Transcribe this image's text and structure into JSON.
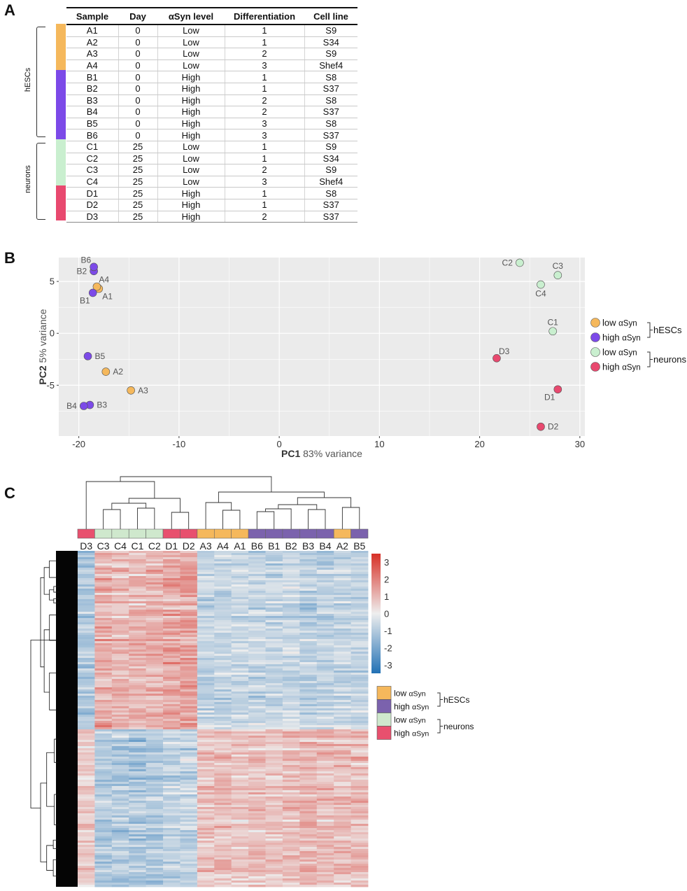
{
  "panel_labels": {
    "a": "A",
    "b": "B",
    "c": "C"
  },
  "colors": {
    "low_hescs": "#f5b85c",
    "high_hescs": "#7c4ae8",
    "low_neurons": "#c9efcf",
    "high_neurons": "#e8496f",
    "heat_low_hescs": "#f5b85c",
    "heat_high_hescs": "#7b62ad",
    "heat_low_neurons": "#cfe8cd",
    "heat_high_neurons": "#e8506e"
  },
  "table": {
    "headers": [
      "Sample",
      "Day",
      "αSyn level",
      "Differentiation",
      "Cell line"
    ],
    "group_labels": {
      "hescs": "hESCs",
      "neurons": "neurons"
    },
    "rows": [
      {
        "sample": "A1",
        "day": "0",
        "level": "Low",
        "diff": "1",
        "line": "S9",
        "group": "low_hescs"
      },
      {
        "sample": "A2",
        "day": "0",
        "level": "Low",
        "diff": "1",
        "line": "S34",
        "group": "low_hescs"
      },
      {
        "sample": "A3",
        "day": "0",
        "level": "Low",
        "diff": "2",
        "line": "S9",
        "group": "low_hescs"
      },
      {
        "sample": "A4",
        "day": "0",
        "level": "Low",
        "diff": "3",
        "line": "Shef4",
        "group": "low_hescs"
      },
      {
        "sample": "B1",
        "day": "0",
        "level": "High",
        "diff": "1",
        "line": "S8",
        "group": "high_hescs"
      },
      {
        "sample": "B2",
        "day": "0",
        "level": "High",
        "diff": "1",
        "line": "S37",
        "group": "high_hescs"
      },
      {
        "sample": "B3",
        "day": "0",
        "level": "High",
        "diff": "2",
        "line": "S8",
        "group": "high_hescs"
      },
      {
        "sample": "B4",
        "day": "0",
        "level": "High",
        "diff": "2",
        "line": "S37",
        "group": "high_hescs"
      },
      {
        "sample": "B5",
        "day": "0",
        "level": "High",
        "diff": "3",
        "line": "S8",
        "group": "high_hescs"
      },
      {
        "sample": "B6",
        "day": "0",
        "level": "High",
        "diff": "3",
        "line": "S37",
        "group": "high_hescs"
      },
      {
        "sample": "C1",
        "day": "25",
        "level": "Low",
        "diff": "1",
        "line": "S9",
        "group": "low_neurons"
      },
      {
        "sample": "C2",
        "day": "25",
        "level": "Low",
        "diff": "1",
        "line": "S34",
        "group": "low_neurons"
      },
      {
        "sample": "C3",
        "day": "25",
        "level": "Low",
        "diff": "2",
        "line": "S9",
        "group": "low_neurons"
      },
      {
        "sample": "C4",
        "day": "25",
        "level": "Low",
        "diff": "3",
        "line": "Shef4",
        "group": "low_neurons"
      },
      {
        "sample": "D1",
        "day": "25",
        "level": "High",
        "diff": "1",
        "line": "S8",
        "group": "high_neurons"
      },
      {
        "sample": "D2",
        "day": "25",
        "level": "High",
        "diff": "1",
        "line": "S37",
        "group": "high_neurons"
      },
      {
        "sample": "D3",
        "day": "25",
        "level": "High",
        "diff": "2",
        "line": "S37",
        "group": "high_neurons"
      }
    ]
  },
  "legend": {
    "low": "low",
    "high": "high",
    "syn": "αSyn",
    "hescs": "hESCs",
    "neurons": "neurons"
  },
  "chart_data": [
    {
      "type": "scatter",
      "xlabel_bold": "PC1",
      "xlabel": "83% variance",
      "ylabel_bold": "PC2",
      "ylabel": "5% variance",
      "xlim": [
        -22,
        30.5
      ],
      "ylim": [
        -9.9,
        7.3
      ],
      "xticks": [
        -20,
        -10,
        0,
        10,
        20,
        30
      ],
      "yticks": [
        -5,
        0,
        5
      ],
      "points": [
        {
          "label": "A1",
          "x": -18.0,
          "y": 4.3,
          "group": "low_hescs",
          "pos": "below-right"
        },
        {
          "label": "A2",
          "x": -17.3,
          "y": -3.7,
          "group": "low_hescs",
          "pos": "right"
        },
        {
          "label": "A3",
          "x": -14.8,
          "y": -5.5,
          "group": "low_hescs",
          "pos": "right"
        },
        {
          "label": "A4",
          "x": -18.2,
          "y": 4.5,
          "group": "low_hescs",
          "pos": "above-right"
        },
        {
          "label": "B1",
          "x": -18.6,
          "y": 3.9,
          "group": "high_hescs",
          "pos": "below-left"
        },
        {
          "label": "B2",
          "x": -18.5,
          "y": 6.0,
          "group": "high_hescs",
          "pos": "left"
        },
        {
          "label": "B3",
          "x": -18.9,
          "y": -6.9,
          "group": "high_hescs",
          "pos": "right"
        },
        {
          "label": "B4",
          "x": -19.5,
          "y": -7.0,
          "group": "high_hescs",
          "pos": "left"
        },
        {
          "label": "B5",
          "x": -19.1,
          "y": -2.2,
          "group": "high_hescs",
          "pos": "right"
        },
        {
          "label": "B6",
          "x": -18.5,
          "y": 6.4,
          "group": "high_hescs",
          "pos": "above-left"
        },
        {
          "label": "C1",
          "x": 27.3,
          "y": 0.2,
          "group": "low_neurons",
          "pos": "above"
        },
        {
          "label": "C2",
          "x": 24.0,
          "y": 6.8,
          "group": "low_neurons",
          "pos": "left"
        },
        {
          "label": "C3",
          "x": 27.8,
          "y": 5.6,
          "group": "low_neurons",
          "pos": "above"
        },
        {
          "label": "C4",
          "x": 26.1,
          "y": 4.7,
          "group": "low_neurons",
          "pos": "below"
        },
        {
          "label": "D1",
          "x": 27.8,
          "y": -5.4,
          "group": "high_neurons",
          "pos": "below-left"
        },
        {
          "label": "D2",
          "x": 26.1,
          "y": -9.0,
          "group": "high_neurons",
          "pos": "right"
        },
        {
          "label": "D3",
          "x": 21.7,
          "y": -2.4,
          "group": "high_neurons",
          "pos": "above-right"
        }
      ]
    },
    {
      "type": "heatmap",
      "columns": [
        "D3",
        "C3",
        "C4",
        "C1",
        "C2",
        "D1",
        "D2",
        "A3",
        "A4",
        "A1",
        "B6",
        "B1",
        "B2",
        "B3",
        "B4",
        "A2",
        "B5"
      ],
      "column_groups": [
        "high_neurons",
        "low_neurons",
        "low_neurons",
        "low_neurons",
        "low_neurons",
        "high_neurons",
        "high_neurons",
        "low_hescs",
        "low_hescs",
        "low_hescs",
        "high_hescs",
        "high_hescs",
        "high_hescs",
        "high_hescs",
        "high_hescs",
        "low_hescs",
        "high_hescs"
      ],
      "scale_ticks": [
        3,
        2,
        1,
        0,
        -1,
        -2,
        -3
      ],
      "value_range": [
        -3.5,
        3.5
      ],
      "row_cluster_split": 0.53,
      "cluster1_values": [
        -1.0,
        1.2,
        1.0,
        1.0,
        1.1,
        1.3,
        1.4,
        -0.7,
        -0.7,
        -0.6,
        -0.7,
        -0.7,
        -0.6,
        -0.8,
        -0.8,
        -0.6,
        -0.7
      ],
      "cluster2_values": [
        0.6,
        -1.0,
        -1.0,
        -1.1,
        -1.0,
        -0.8,
        -0.8,
        0.8,
        0.9,
        0.7,
        0.8,
        0.8,
        0.9,
        1.0,
        0.9,
        0.9,
        0.9
      ]
    }
  ]
}
